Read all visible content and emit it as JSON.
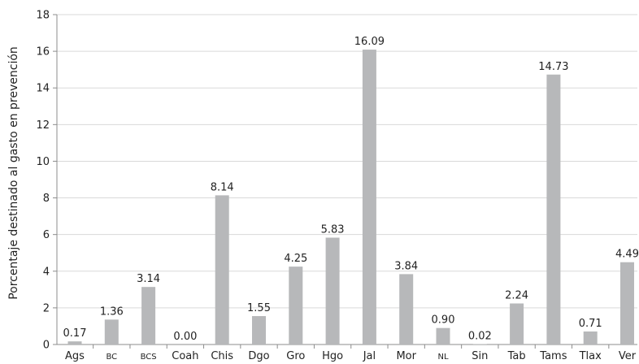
{
  "chart_data": {
    "type": "bar",
    "title": "",
    "xlabel": "",
    "ylabel": "Porcentaje destinado al gasto en prevención",
    "ylim": [
      0,
      18
    ],
    "yticks": [
      0,
      2,
      4,
      6,
      8,
      10,
      12,
      14,
      16,
      18
    ],
    "grid": true,
    "legend": "none",
    "categories": [
      "Ags",
      "BC",
      "BCS",
      "Coah",
      "Chis",
      "Dgo",
      "Gro",
      "Hgo",
      "Jal",
      "Mor",
      "NL",
      "Sin",
      "Tab",
      "Tams",
      "Tlax",
      "Ver"
    ],
    "small_caps_categories": [
      "BC",
      "BCS",
      "NL"
    ],
    "values": [
      0.17,
      1.36,
      3.14,
      0.0,
      8.14,
      1.55,
      4.25,
      5.83,
      16.09,
      3.84,
      0.9,
      0.02,
      2.24,
      14.73,
      0.71,
      4.49
    ],
    "data_labels": [
      "0.17",
      "1.36",
      "3.14",
      "0.00",
      "8.14",
      "1.55",
      "4.25",
      "5.83",
      "16.09",
      "3.84",
      "0.90",
      "0.02",
      "2.24",
      "14.73",
      "0.71",
      "4.49"
    ],
    "colors": {
      "bar": "#b7b8ba",
      "grid": "#d9d9d9",
      "axis": "#8c8c8c",
      "text": "#222222"
    }
  }
}
